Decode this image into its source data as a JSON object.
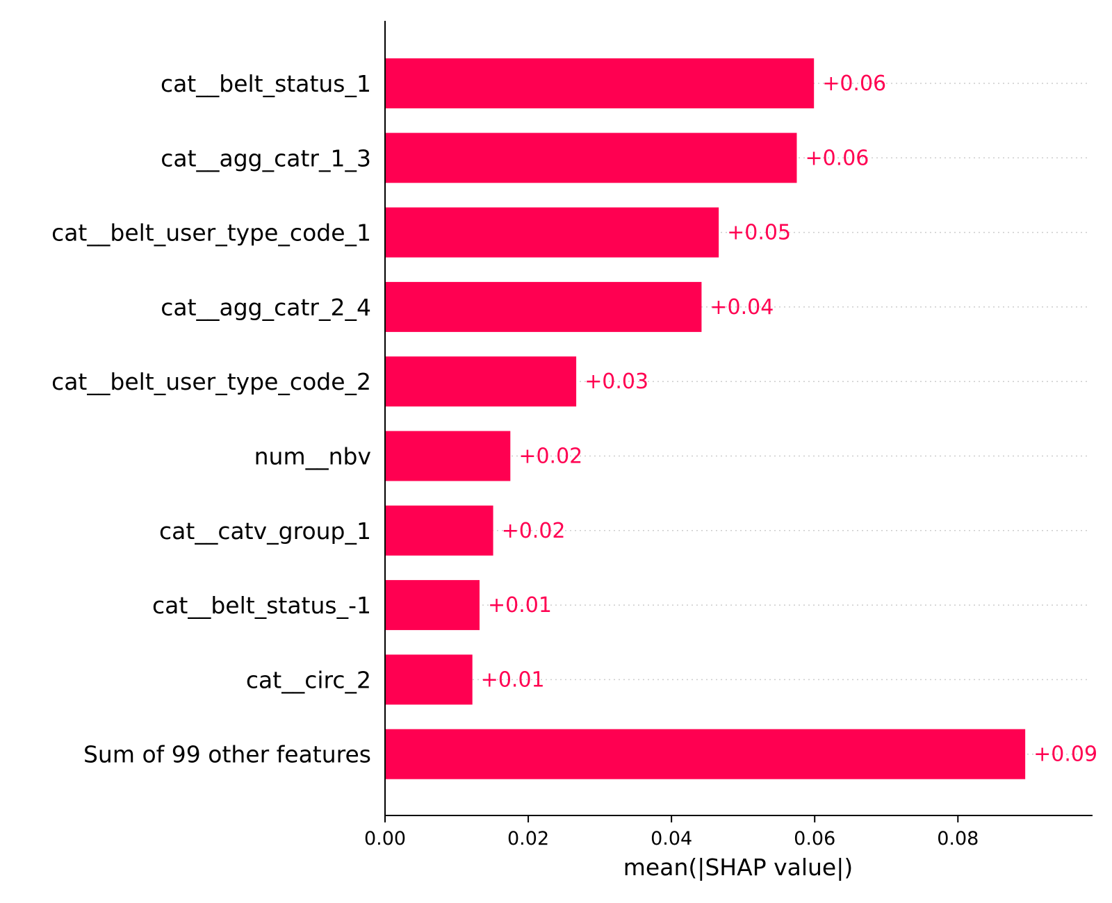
{
  "chart_data": {
    "type": "bar",
    "orientation": "horizontal",
    "categories": [
      "cat__belt_status_1",
      "cat__agg_catr_1_3",
      "cat__belt_user_type_code_1",
      "cat__agg_catr_2_4",
      "cat__belt_user_type_code_2",
      "num__nbv",
      "cat__catv_group_1",
      "cat__belt_status_-1",
      "cat__circ_2",
      "Sum of 99 other features"
    ],
    "values": [
      0.0599,
      0.0575,
      0.0466,
      0.0442,
      0.0267,
      0.0175,
      0.0151,
      0.0132,
      0.0122,
      0.0894
    ],
    "value_labels": [
      "+0.06",
      "+0.06",
      "+0.05",
      "+0.04",
      "+0.03",
      "+0.02",
      "+0.02",
      "+0.01",
      "+0.01",
      "+0.09"
    ],
    "xlabel": "mean(|SHAP value|)",
    "ylabel": "",
    "title": "",
    "xlim": [
      0,
      0.0988
    ],
    "xticks": [
      0,
      0.02,
      0.04,
      0.06,
      0.08
    ],
    "xtick_labels": [
      "0.00",
      "0.02",
      "0.04",
      "0.06",
      "0.08"
    ],
    "grid": "dotted horizontal guide lines per bar",
    "colors": {
      "bar": "#ff0051",
      "label": "#ff0051",
      "axis": "#000000",
      "guide": "#cccccc"
    }
  }
}
